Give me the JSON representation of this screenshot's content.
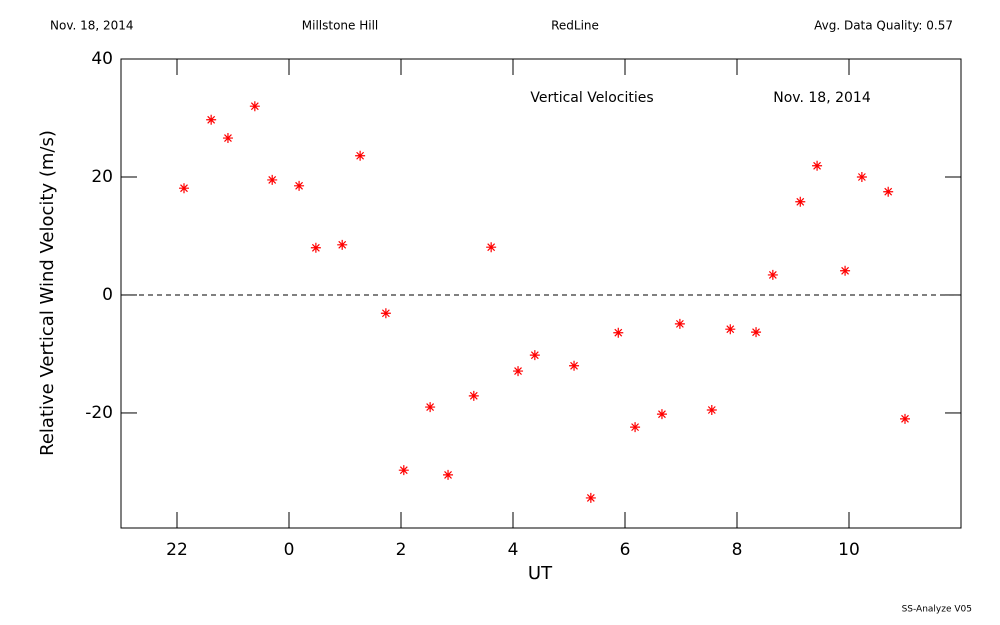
{
  "chart_data": {
    "type": "scatter",
    "header": {
      "date": "Nov. 18, 2014",
      "site": "Millstone Hill",
      "instrument": "RedLine",
      "quality": "Avg. Data Quality: 0.57"
    },
    "annotations": [
      "Vertical Velocities",
      "Nov. 18, 2014"
    ],
    "footer": "SS-Analyze V05",
    "xlabel": "UT",
    "ylabel": "Relative Vertical Wind Velocity (m/s)",
    "xlim": [
      -3,
      12
    ],
    "xticks": [
      {
        "value": -2,
        "label": "22"
      },
      0,
      2,
      4,
      6,
      8,
      10
    ],
    "ylim": [
      -39.5,
      40
    ],
    "yticks": [
      -20,
      0,
      20,
      40
    ],
    "reference_line": 0,
    "color": "#ff0000",
    "x": [
      -1.875,
      -1.39,
      -1.09,
      -0.61,
      -0.3,
      0.18,
      0.48,
      0.95,
      1.27,
      1.73,
      2.05,
      2.52,
      2.84,
      3.3,
      3.61,
      4.09,
      4.39,
      5.09,
      5.39,
      5.88,
      6.18,
      6.66,
      6.98,
      7.55,
      7.88,
      8.34,
      8.64,
      9.13,
      9.43,
      9.93,
      10.23,
      10.7,
      11.0
    ],
    "values": [
      18.1,
      29.7,
      26.6,
      32.0,
      19.5,
      18.5,
      8.0,
      8.5,
      23.6,
      -3.1,
      -29.7,
      -19.0,
      -30.5,
      -17.1,
      8.1,
      -12.9,
      -10.2,
      -12.0,
      -34.4,
      -6.4,
      -22.4,
      -20.2,
      -4.9,
      -19.5,
      -5.8,
      -6.3,
      3.4,
      15.8,
      21.9,
      4.1,
      20.0,
      17.5,
      -21.0
    ]
  }
}
